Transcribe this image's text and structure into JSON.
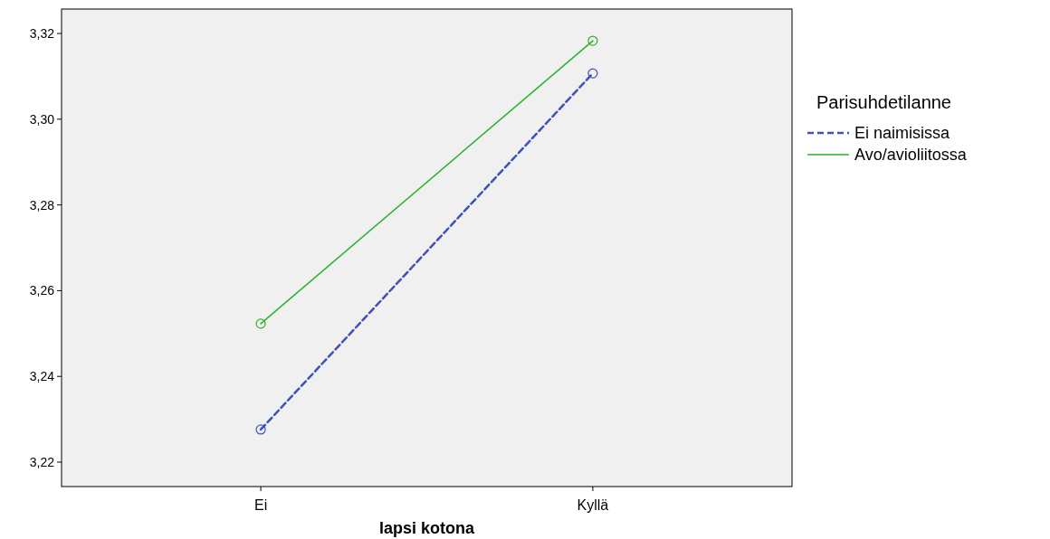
{
  "chart_data": {
    "type": "line",
    "xlabel": "lapsi kotona",
    "legend_title": "Parisuhdetilanne",
    "categories": [
      "Ei",
      "Kyllä"
    ],
    "series": [
      {
        "name": "Ei naimisissa",
        "color": "#3f51b5",
        "values": [
          3.2276,
          3.3107
        ],
        "line_style": "dashed"
      },
      {
        "name": "Avo/avioliitossa",
        "color": "#2ab32a",
        "values": [
          3.2523,
          3.3183
        ],
        "line_style": "solid"
      }
    ],
    "ylim": [
      3.2143,
      3.3257
    ],
    "yticks": [
      {
        "value": 3.22,
        "label": "3,22"
      },
      {
        "value": 3.24,
        "label": "3,24"
      },
      {
        "value": 3.26,
        "label": "3,26"
      },
      {
        "value": 3.28,
        "label": "3,28"
      },
      {
        "value": 3.3,
        "label": "3,30"
      },
      {
        "value": 3.32,
        "label": "3,32"
      }
    ],
    "marker": "circle",
    "legend": "right",
    "grid": false
  }
}
